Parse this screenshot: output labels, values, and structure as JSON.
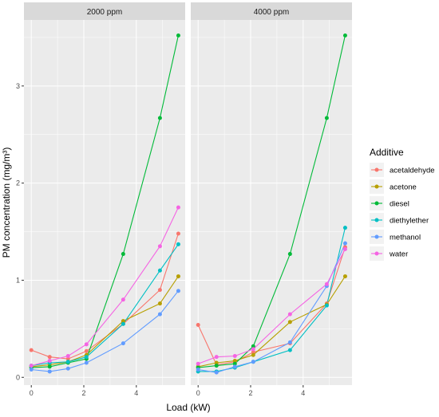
{
  "chart_data": {
    "type": "line",
    "xlabel": "Load (kW)",
    "ylabel": "PM concentration (mg/m³)",
    "xlim": [
      -0.28,
      5.86
    ],
    "ylim": [
      -0.08,
      3.68
    ],
    "x_ticks": [
      0,
      2,
      4
    ],
    "y_ticks": [
      0,
      1,
      2,
      3
    ],
    "grid": true,
    "legend_title": "Additive",
    "legend_position": "right",
    "x": [
      0,
      0.7,
      1.4,
      2.1,
      3.5,
      4.9,
      5.6
    ],
    "panels": [
      {
        "label": "2000 ppm",
        "series": [
          {
            "name": "acetaldehyde",
            "color": "#F8766D",
            "values": [
              0.28,
              0.21,
              0.19,
              0.27,
              0.55,
              0.9,
              1.48
            ]
          },
          {
            "name": "acetone",
            "color": "#B79F00",
            "values": [
              0.11,
              0.13,
              0.16,
              0.23,
              0.58,
              0.76,
              1.04
            ]
          },
          {
            "name": "diesel",
            "color": "#00BA38",
            "values": [
              0.1,
              0.11,
              0.15,
              0.19,
              1.27,
              2.67,
              3.52
            ]
          },
          {
            "name": "diethylether",
            "color": "#00BFC4",
            "values": [
              0.12,
              0.15,
              0.16,
              0.21,
              0.55,
              1.1,
              1.37
            ]
          },
          {
            "name": "methanol",
            "color": "#619CFF",
            "values": [
              0.08,
              0.06,
              0.09,
              0.15,
              0.35,
              0.65,
              0.89
            ]
          },
          {
            "name": "water",
            "color": "#F564E3",
            "values": [
              0.12,
              0.17,
              0.22,
              0.34,
              0.8,
              1.35,
              1.75
            ]
          }
        ]
      },
      {
        "label": "4000 ppm",
        "series": [
          {
            "name": "acetaldehyde",
            "color": "#F8766D",
            "values": [
              0.54,
              0.13,
              0.16,
              0.26,
              0.35,
              0.76,
              1.34
            ]
          },
          {
            "name": "acetone",
            "color": "#B79F00",
            "values": [
              0.11,
              0.15,
              0.17,
              0.23,
              0.57,
              0.75,
              1.04
            ]
          },
          {
            "name": "diesel",
            "color": "#00BA38",
            "values": [
              0.1,
              0.12,
              0.14,
              0.32,
              1.27,
              2.67,
              3.52
            ]
          },
          {
            "name": "diethylether",
            "color": "#00BFC4",
            "values": [
              0.06,
              0.06,
              0.1,
              0.16,
              0.28,
              0.74,
              1.54
            ]
          },
          {
            "name": "methanol",
            "color": "#619CFF",
            "values": [
              0.08,
              0.05,
              0.11,
              0.16,
              0.36,
              0.94,
              1.38
            ]
          },
          {
            "name": "water",
            "color": "#F564E3",
            "values": [
              0.14,
              0.21,
              0.22,
              0.29,
              0.65,
              0.96,
              1.32
            ]
          }
        ]
      }
    ]
  }
}
